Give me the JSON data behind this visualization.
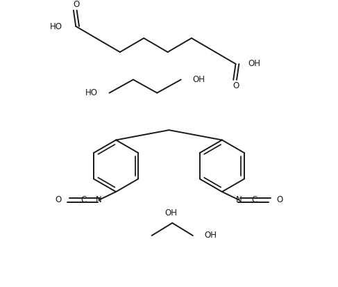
{
  "bg_color": "#ffffff",
  "line_color": "#1a1a1a",
  "line_width": 1.4,
  "font_size": 8.5,
  "figsize": [
    4.87,
    4.13
  ],
  "dpi": 100,
  "xlim": [
    0,
    10
  ],
  "ylim": [
    0,
    8.5
  ]
}
